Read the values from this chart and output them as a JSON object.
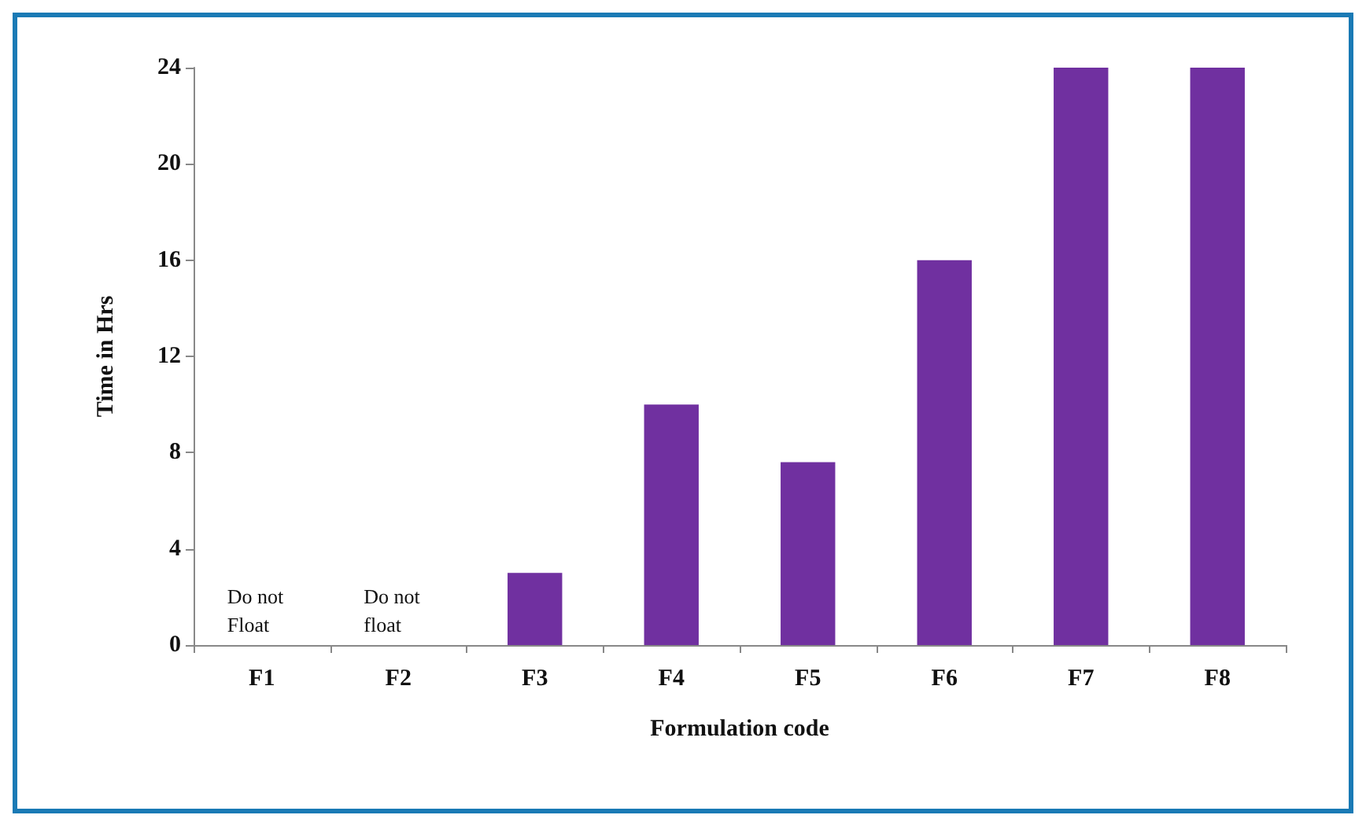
{
  "chart_data": {
    "type": "bar",
    "xlabel": "Formulation code",
    "ylabel": "Time in Hrs",
    "categories": [
      "F1",
      "F2",
      "F3",
      "F4",
      "F5",
      "F6",
      "F7",
      "F8"
    ],
    "values": [
      0,
      0,
      3,
      10,
      7.6,
      16,
      24,
      24
    ],
    "color": "#7030a0",
    "ylim": [
      0,
      24
    ],
    "yticks": [
      0,
      4,
      8,
      12,
      16,
      20,
      24
    ],
    "grid": false,
    "annotations": [
      {
        "text": "Do not\nFloat",
        "x": "F1",
        "y": 0
      },
      {
        "text": "Do not\nfloat",
        "x": "F2",
        "y": 0
      }
    ]
  }
}
